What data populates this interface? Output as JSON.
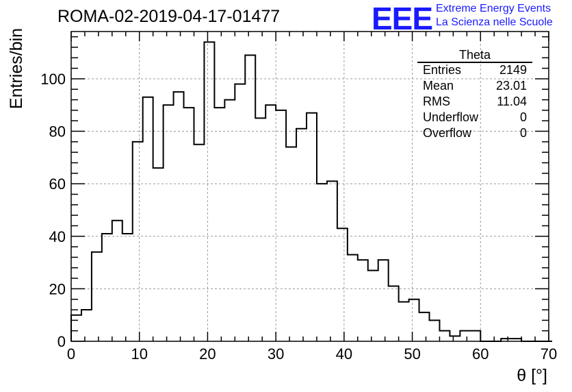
{
  "title": "ROMA-02-2019-04-17-01477",
  "logo": {
    "mark": "EEE",
    "line1": "Extreme Energy Events",
    "line2": "La Scienza nelle Scuole",
    "color": "#1a1aff"
  },
  "stats": {
    "title": "Theta",
    "rows": [
      {
        "label": "Entries",
        "value": "2149"
      },
      {
        "label": "Mean",
        "value": "23.01"
      },
      {
        "label": "RMS",
        "value": "11.04"
      },
      {
        "label": "Underflow",
        "value": "0"
      },
      {
        "label": "Overflow",
        "value": "0"
      }
    ]
  },
  "chart_data": {
    "type": "bar",
    "style": "step-histogram",
    "xlabel": "θ [°]",
    "ylabel": "Entries/bin",
    "xlim": [
      0,
      70
    ],
    "ylim": [
      0,
      118
    ],
    "xticks": [
      0,
      10,
      20,
      30,
      40,
      50,
      60,
      70
    ],
    "yticks": [
      0,
      20,
      40,
      60,
      80,
      100
    ],
    "grid": true,
    "bin_width": 1.5,
    "bin_start": 0,
    "values": [
      10,
      12,
      34,
      41,
      46,
      41,
      76,
      93,
      66,
      90,
      95,
      89,
      75,
      114,
      89,
      92,
      98,
      109,
      85,
      90,
      88,
      74,
      81,
      87,
      60,
      61,
      43,
      33,
      31,
      27,
      31,
      21,
      15,
      16,
      11,
      8,
      4,
      2,
      4,
      4,
      0,
      0,
      1,
      1,
      0,
      0,
      0
    ]
  }
}
